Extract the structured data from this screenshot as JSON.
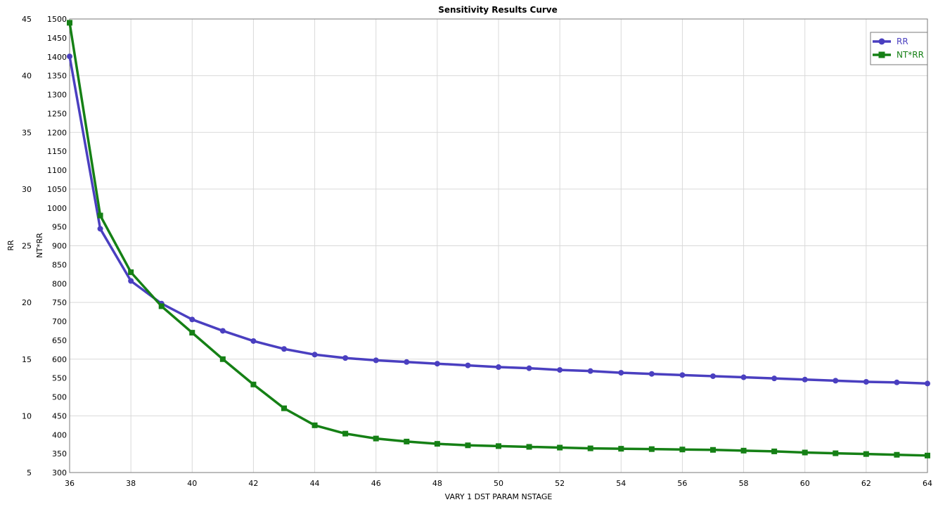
{
  "chart_data": {
    "type": "line",
    "title": "Sensitivity Results Curve",
    "xlabel": "VARY   1 DST PARAM NSTAGE",
    "ylabel_left": "RR",
    "ylabel_right_axis": "NT*RR",
    "xlim": [
      36,
      64
    ],
    "ylim_left": [
      5,
      45
    ],
    "ylim_second": [
      300,
      1500
    ],
    "x_ticks": [
      36,
      38,
      40,
      42,
      44,
      46,
      48,
      50,
      52,
      54,
      56,
      58,
      60,
      62,
      64
    ],
    "y_left_ticks": [
      5,
      10,
      15,
      20,
      25,
      30,
      35,
      40,
      45
    ],
    "y_second_ticks": [
      300,
      350,
      400,
      450,
      500,
      550,
      600,
      650,
      700,
      750,
      800,
      850,
      900,
      950,
      1000,
      1050,
      1100,
      1150,
      1200,
      1250,
      1300,
      1350,
      1400,
      1450,
      1500
    ],
    "grid": true,
    "legend_position": "top-right",
    "x": [
      36,
      37,
      38,
      39,
      40,
      41,
      42,
      43,
      44,
      45,
      46,
      47,
      48,
      49,
      50,
      51,
      52,
      53,
      54,
      55,
      56,
      57,
      58,
      59,
      60,
      61,
      62,
      63,
      64
    ],
    "series": [
      {
        "name": "RR",
        "axis": "left",
        "color": "#4a3fc0",
        "marker": "circle",
        "values": [
          41.7,
          26.5,
          21.9,
          19.9,
          18.5,
          17.5,
          16.6,
          15.9,
          15.4,
          15.1,
          14.9,
          14.75,
          14.6,
          14.45,
          14.3,
          14.2,
          14.05,
          13.95,
          13.8,
          13.7,
          13.6,
          13.5,
          13.4,
          13.3,
          13.2,
          13.1,
          13.0,
          12.95,
          12.85
        ]
      },
      {
        "name": "NT*RR",
        "axis": "right",
        "color": "#158015",
        "marker": "square",
        "values": [
          1490,
          980,
          830,
          740,
          670,
          600,
          533,
          470,
          425,
          403,
          390,
          382,
          376,
          372,
          370,
          368,
          366,
          364,
          363,
          362,
          361,
          360,
          358,
          356,
          353,
          351,
          349,
          347,
          345
        ]
      }
    ]
  }
}
